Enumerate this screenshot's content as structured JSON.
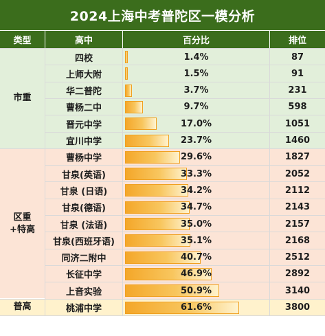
{
  "title": "2024上海中考普陀区一模分析",
  "headers": {
    "type": "类型",
    "school": "高中",
    "percent": "百分比",
    "rank": "排位"
  },
  "groups": [
    {
      "label": "市重",
      "start": 0,
      "count": 6,
      "bg": "#e2efda"
    },
    {
      "label": "区重\n+特高",
      "start": 6,
      "count": 9,
      "bg": "#fce4d6"
    },
    {
      "label": "普高",
      "start": 15,
      "count": 1,
      "bg": "#fff2cc"
    }
  ],
  "rows": [
    {
      "school": "四校",
      "percent": "1.4%",
      "value": 1.4,
      "rank": "87"
    },
    {
      "school": "上师大附",
      "percent": "1.5%",
      "value": 1.5,
      "rank": "91"
    },
    {
      "school": "华二普陀",
      "percent": "3.7%",
      "value": 3.7,
      "rank": "231"
    },
    {
      "school": "曹杨二中",
      "percent": "9.7%",
      "value": 9.7,
      "rank": "598"
    },
    {
      "school": "晋元中学",
      "percent": "17.0%",
      "value": 17.0,
      "rank": "1051"
    },
    {
      "school": "宜川中学",
      "percent": "23.7%",
      "value": 23.7,
      "rank": "1460"
    },
    {
      "school": "曹杨中学",
      "percent": "29.6%",
      "value": 29.6,
      "rank": "1827"
    },
    {
      "school": "甘泉(英语)",
      "percent": "33.3%",
      "value": 33.3,
      "rank": "2052"
    },
    {
      "school": "甘泉 (日语)",
      "percent": "34.2%",
      "value": 34.2,
      "rank": "2112"
    },
    {
      "school": "甘泉(德语)",
      "percent": "34.7%",
      "value": 34.7,
      "rank": "2143"
    },
    {
      "school": "甘泉 (法语)",
      "percent": "35.0%",
      "value": 35.0,
      "rank": "2157"
    },
    {
      "school": "甘泉(西班牙语)",
      "percent": "35.1%",
      "value": 35.1,
      "rank": "2168"
    },
    {
      "school": "同济二附中",
      "percent": "40.7%",
      "value": 40.7,
      "rank": "2512"
    },
    {
      "school": "长征中学",
      "percent": "46.9%",
      "value": 46.9,
      "rank": "2892"
    },
    {
      "school": "上音实验",
      "percent": "50.9%",
      "value": 50.9,
      "rank": "3140"
    },
    {
      "school": "桃浦中学",
      "percent": "61.6%",
      "value": 61.6,
      "rank": "3800"
    }
  ],
  "colors": {
    "header": "#3b6d1c",
    "bar": "#f4a72a"
  }
}
